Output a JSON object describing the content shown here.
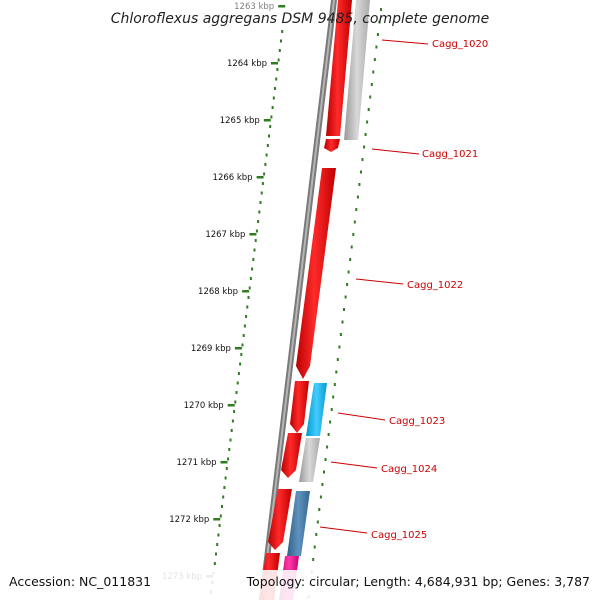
{
  "title": "Chloroflexus aggregans DSM 9485, complete genome",
  "footer": {
    "accession": "Accession: NC_011831",
    "topology": "Topology: circular; Length: 4,684,931 bp; Genes: 3,787"
  },
  "ruler": {
    "unit": "kbp",
    "labels": [
      "1263 kbp",
      "1264 kbp",
      "1265 kbp",
      "1266 kbp",
      "1267 kbp",
      "1268 kbp",
      "1269 kbp",
      "1270 kbp",
      "1271 kbp",
      "1272 kbp",
      "1273 kbp"
    ]
  },
  "gene_labels": [
    "Cagg_1020",
    "Cagg_1021",
    "Cagg_1022",
    "Cagg_1023",
    "Cagg_1024",
    "Cagg_1025"
  ],
  "colors": {
    "background": "#ffffff",
    "title": "#222222",
    "ruler_dots": "#2e7d1f",
    "backbone": "#7a7a7a",
    "forward_genes": "#ee0000",
    "gene_labels": "#cc0000",
    "grey_feature": "#bdbdbd",
    "cyan_feature": "#22bbee",
    "steelblue_feature": "#4a7fa8",
    "magenta_feature": "#ee2299"
  }
}
